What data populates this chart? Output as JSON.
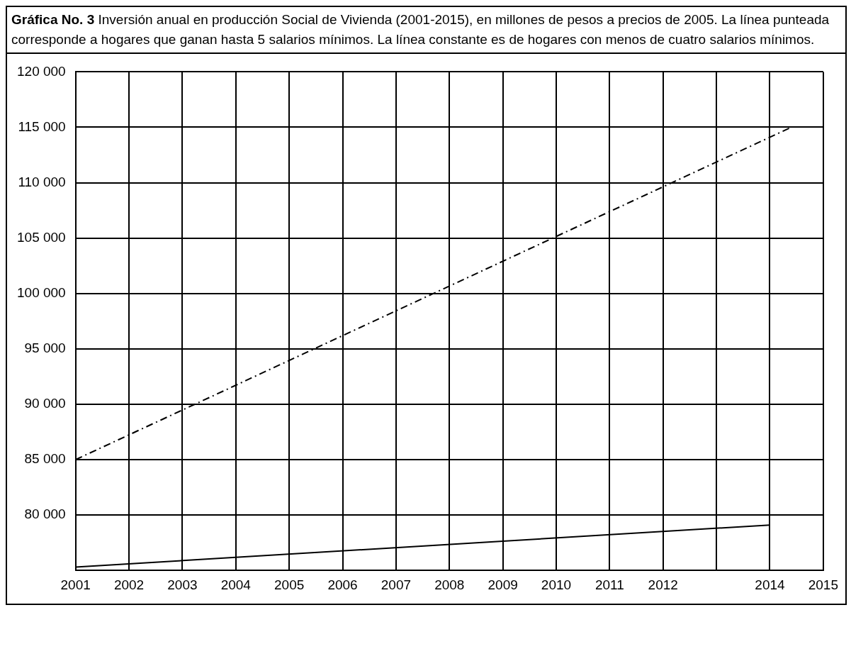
{
  "chart_data": {
    "type": "line",
    "title": "Gráfica No. 3",
    "subtitle": "Inversión anual en producción Social de Vivienda (2001-2015), en millones de pesos a precios de 2005. La línea punteada corresponde a hogares que ganan hasta 5 salarios mínimos. La línea constante es de hogares con menos de cuatro salarios mínimos.",
    "series": [
      {
        "color": "#000000",
        "x": [
          2001,
          2014.4
        ],
        "values": [
          85000,
          115000
        ],
        "line_style": "dashed"
      },
      {
        "color": "#000000",
        "x": [
          2001,
          2014
        ],
        "values": [
          75300,
          79100
        ],
        "line_style": "solid"
      }
    ],
    "xlim": [
      2001,
      2015
    ],
    "xticks": [
      2001,
      2002,
      2003,
      2004,
      2005,
      2006,
      2007,
      2008,
      2009,
      2010,
      2011,
      2012,
      {
        "value": 2013,
        "label": null
      },
      2014,
      2015
    ],
    "ylim": [
      75000,
      120000
    ],
    "yticks": [
      {
        "value": 75000,
        "label": null
      },
      {
        "value": 80000,
        "label": "80 000"
      },
      {
        "value": 85000,
        "label": "85 000"
      },
      {
        "value": 90000,
        "label": "90 000"
      },
      {
        "value": 95000,
        "label": "95 000"
      },
      {
        "value": 100000,
        "label": "100 000"
      },
      {
        "value": 105000,
        "label": "105 000"
      },
      {
        "value": 110000,
        "label": "110 000"
      },
      {
        "value": 115000,
        "label": "115 000"
      },
      {
        "value": 120000,
        "label": "120 000"
      }
    ],
    "grid": true,
    "marker": "none"
  }
}
